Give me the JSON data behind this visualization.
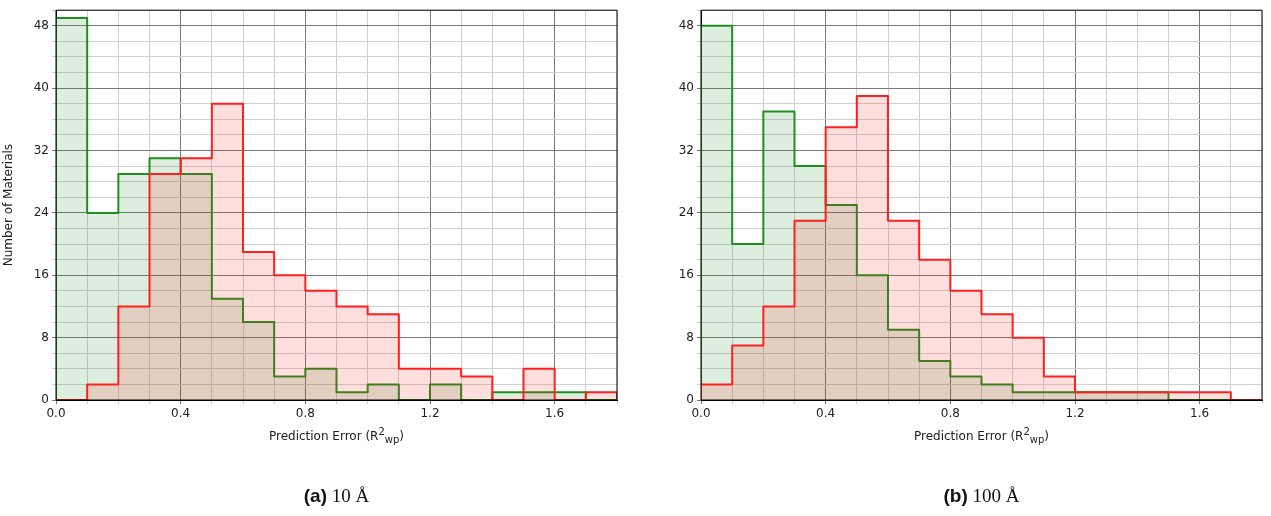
{
  "chart_data": [
    {
      "type": "histogram",
      "title": "(a) 10 Å",
      "xlabel": "Prediction Error (R$^{2}$$_{wp}$)",
      "ylabel": "Number of Materials",
      "bins": [
        0,
        0.1,
        0.2,
        0.3,
        0.4,
        0.5,
        0.6,
        0.7,
        0.8,
        0.9,
        1.0,
        1.1,
        1.2,
        1.3,
        1.4,
        1.5,
        1.6,
        1.7,
        1.8
      ],
      "series": [
        {
          "color": "#ff2020",
          "values": [
            0,
            2,
            12,
            29,
            31,
            38,
            19,
            16,
            14,
            12,
            11,
            4,
            4,
            3,
            0,
            4,
            0,
            1
          ]
        },
        {
          "color": "#1f8f1f",
          "values": [
            49,
            24,
            29,
            31,
            29,
            13,
            10,
            3,
            4,
            1,
            2,
            0,
            2,
            0,
            1,
            1,
            1,
            0
          ]
        }
      ],
      "xlim": [
        0,
        1.8
      ],
      "ylim": [
        0,
        50
      ],
      "xticks": [
        {
          "value": 0,
          "label": "0.0"
        },
        {
          "value": 0.1,
          "label": null
        },
        {
          "value": 0.2,
          "label": null
        },
        {
          "value": 0.3,
          "label": null
        },
        0.4,
        {
          "value": 0.5,
          "label": null
        },
        {
          "value": 0.6,
          "label": null
        },
        {
          "value": 0.7,
          "label": null
        },
        0.8,
        {
          "value": 0.9,
          "label": null
        },
        {
          "value": 1.0,
          "label": null
        },
        {
          "value": 1.1,
          "label": null
        },
        1.2,
        {
          "value": 1.3,
          "label": null
        },
        {
          "value": 1.4,
          "label": null
        },
        {
          "value": 1.5,
          "label": null
        },
        1.6,
        {
          "value": 1.7,
          "label": null
        },
        {
          "value": 1.8,
          "label": null
        }
      ],
      "yticks": [
        0,
        {
          "value": 2,
          "label": null
        },
        {
          "value": 4,
          "label": null
        },
        {
          "value": 6,
          "label": null
        },
        8,
        {
          "value": 10,
          "label": null
        },
        {
          "value": 12,
          "label": null
        },
        {
          "value": 14,
          "label": null
        },
        16,
        {
          "value": 18,
          "label": null
        },
        {
          "value": 20,
          "label": null
        },
        {
          "value": 22,
          "label": null
        },
        24,
        {
          "value": 26,
          "label": null
        },
        {
          "value": 28,
          "label": null
        },
        {
          "value": 30,
          "label": null
        },
        32,
        {
          "value": 34,
          "label": null
        },
        {
          "value": 36,
          "label": null
        },
        {
          "value": 38,
          "label": null
        },
        40,
        {
          "value": 42,
          "label": null
        },
        {
          "value": 44,
          "label": null
        },
        {
          "value": 46,
          "label": null
        },
        48,
        {
          "value": 50,
          "label": null
        }
      ],
      "grid": true
    },
    {
      "type": "histogram",
      "title": "(b) 100 Å",
      "xlabel": "Prediction Error (R$^{2}$$_{wp}$)",
      "bins": [
        0,
        0.1,
        0.2,
        0.3,
        0.4,
        0.5,
        0.6,
        0.7,
        0.8,
        0.9,
        1.0,
        1.1,
        1.2,
        1.3,
        1.4,
        1.5,
        1.6,
        1.7,
        1.8
      ],
      "series": [
        {
          "color": "#ff2020",
          "values": [
            2,
            7,
            12,
            23,
            35,
            39,
            23,
            18,
            14,
            11,
            8,
            3,
            1,
            1,
            1,
            1,
            1,
            0
          ]
        },
        {
          "color": "#1f8f1f",
          "values": [
            48,
            20,
            37,
            30,
            25,
            16,
            9,
            5,
            3,
            2,
            1,
            1,
            1,
            1,
            1,
            0,
            0,
            0
          ]
        }
      ],
      "xlim": [
        0,
        1.8
      ],
      "ylim": [
        0,
        50
      ],
      "xticks": [
        {
          "value": 0,
          "label": "0.0"
        },
        {
          "value": 0.1,
          "label": null
        },
        {
          "value": 0.2,
          "label": null
        },
        {
          "value": 0.3,
          "label": null
        },
        0.4,
        {
          "value": 0.5,
          "label": null
        },
        {
          "value": 0.6,
          "label": null
        },
        {
          "value": 0.7,
          "label": null
        },
        0.8,
        {
          "value": 0.9,
          "label": null
        },
        {
          "value": 1.0,
          "label": null
        },
        {
          "value": 1.1,
          "label": null
        },
        1.2,
        {
          "value": 1.3,
          "label": null
        },
        {
          "value": 1.4,
          "label": null
        },
        {
          "value": 1.5,
          "label": null
        },
        1.6,
        {
          "value": 1.7,
          "label": null
        },
        {
          "value": 1.8,
          "label": null
        }
      ],
      "yticks": [
        0,
        {
          "value": 2,
          "label": null
        },
        {
          "value": 4,
          "label": null
        },
        {
          "value": 6,
          "label": null
        },
        8,
        {
          "value": 10,
          "label": null
        },
        {
          "value": 12,
          "label": null
        },
        {
          "value": 14,
          "label": null
        },
        16,
        {
          "value": 18,
          "label": null
        },
        {
          "value": 20,
          "label": null
        },
        {
          "value": 22,
          "label": null
        },
        24,
        {
          "value": 26,
          "label": null
        },
        {
          "value": 28,
          "label": null
        },
        {
          "value": 30,
          "label": null
        },
        32,
        {
          "value": 34,
          "label": null
        },
        {
          "value": 36,
          "label": null
        },
        {
          "value": 38,
          "label": null
        },
        40,
        {
          "value": 42,
          "label": null
        },
        {
          "value": 44,
          "label": null
        },
        {
          "value": 46,
          "label": null
        },
        48,
        {
          "value": 50,
          "label": null
        }
      ],
      "grid": true
    }
  ]
}
